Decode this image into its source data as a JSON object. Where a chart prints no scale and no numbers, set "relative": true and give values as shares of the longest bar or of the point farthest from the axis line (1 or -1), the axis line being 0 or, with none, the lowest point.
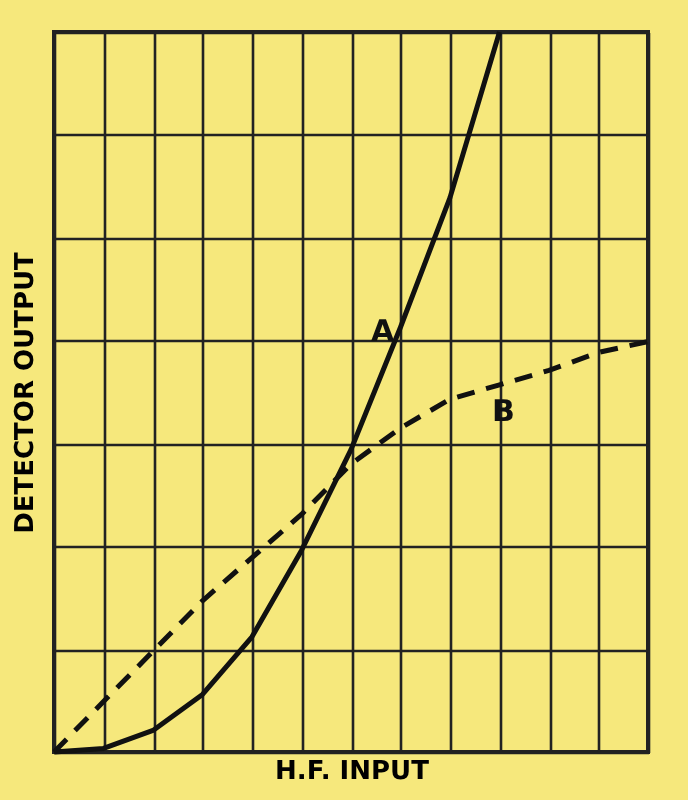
{
  "chart_data": {
    "type": "line",
    "relative": true,
    "xlabel": "H.F. INPUT",
    "ylabel": "DETECTOR OUTPUT",
    "categories": [
      null,
      null,
      null,
      null,
      null,
      null,
      null,
      null,
      null,
      null,
      null,
      null,
      null
    ],
    "grid": true,
    "tick_labels": false,
    "marker": "none",
    "series": [
      {
        "name": "A",
        "color": "#111111",
        "line_style": "solid",
        "values": [
          0,
          0.005,
          0.03,
          0.08,
          0.16,
          0.28,
          0.42,
          0.59,
          0.77,
          1,
          null,
          null,
          null
        ]
      },
      {
        "name": "B",
        "color": "#111111",
        "line_style": "dashed",
        "values": [
          0,
          0.07,
          0.14,
          0.21,
          0.27,
          0.33,
          0.4,
          0.45,
          0.49,
          0.51,
          0.53,
          0.555,
          0.57
        ]
      }
    ]
  }
}
